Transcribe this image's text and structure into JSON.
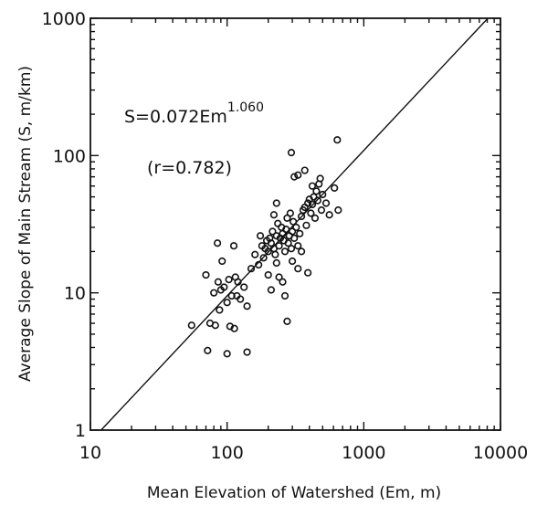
{
  "chart_data": {
    "type": "scatter",
    "xlabel": "Mean Elevation of Watershed (Em, m)",
    "ylabel": "Average Slope of Main Stream (S, m/km)",
    "x_scale": "log",
    "y_scale": "log",
    "xlim": [
      10,
      10000
    ],
    "ylim": [
      1,
      1000
    ],
    "x_ticks": [
      "10",
      "100",
      "1000",
      "10000"
    ],
    "y_ticks": [
      "1",
      "10",
      "100",
      "1000"
    ],
    "grid": false,
    "annotations": {
      "equation_main": "S=0.072Em",
      "equation_exponent": "1.060",
      "correlation": "(r=0.782)"
    },
    "fit_line": {
      "a": 0.072,
      "b": 1.06
    },
    "points": [
      [
        55,
        5.8
      ],
      [
        72,
        3.8
      ],
      [
        100,
        3.6
      ],
      [
        140,
        3.7
      ],
      [
        75,
        6
      ],
      [
        82,
        5.8
      ],
      [
        105,
        5.7
      ],
      [
        113,
        5.5
      ],
      [
        88,
        7.5
      ],
      [
        100,
        8.5
      ],
      [
        108,
        9.5
      ],
      [
        118,
        9.5
      ],
      [
        125,
        9
      ],
      [
        133,
        11
      ],
      [
        140,
        8
      ],
      [
        80,
        10
      ],
      [
        90,
        10.5
      ],
      [
        95,
        11
      ],
      [
        103,
        12.5
      ],
      [
        70,
        13.5
      ],
      [
        86,
        12
      ],
      [
        115,
        13
      ],
      [
        120,
        12
      ],
      [
        92,
        17
      ],
      [
        85,
        23
      ],
      [
        112,
        22
      ],
      [
        150,
        15
      ],
      [
        160,
        19
      ],
      [
        170,
        16
      ],
      [
        175,
        26
      ],
      [
        180,
        22
      ],
      [
        185,
        18
      ],
      [
        190,
        21
      ],
      [
        195,
        24
      ],
      [
        200,
        20
      ],
      [
        205,
        25
      ],
      [
        210,
        23
      ],
      [
        215,
        28
      ],
      [
        220,
        21
      ],
      [
        225,
        19
      ],
      [
        230,
        26
      ],
      [
        235,
        32
      ],
      [
        240,
        22
      ],
      [
        245,
        25
      ],
      [
        250,
        30
      ],
      [
        255,
        27
      ],
      [
        260,
        24
      ],
      [
        265,
        20
      ],
      [
        270,
        29
      ],
      [
        275,
        35
      ],
      [
        280,
        23
      ],
      [
        285,
        26
      ],
      [
        290,
        38
      ],
      [
        295,
        21
      ],
      [
        300,
        28
      ],
      [
        305,
        33
      ],
      [
        310,
        25
      ],
      [
        320,
        30
      ],
      [
        330,
        22
      ],
      [
        340,
        27
      ],
      [
        350,
        36
      ],
      [
        360,
        40
      ],
      [
        370,
        42
      ],
      [
        380,
        31
      ],
      [
        390,
        45
      ],
      [
        400,
        48
      ],
      [
        410,
        38
      ],
      [
        420,
        44
      ],
      [
        430,
        50
      ],
      [
        440,
        35
      ],
      [
        450,
        55
      ],
      [
        460,
        47
      ],
      [
        470,
        62
      ],
      [
        480,
        68
      ],
      [
        490,
        40
      ],
      [
        500,
        52
      ],
      [
        200,
        13.5
      ],
      [
        210,
        10.5
      ],
      [
        230,
        16.5
      ],
      [
        240,
        13
      ],
      [
        255,
        12
      ],
      [
        265,
        9.5
      ],
      [
        275,
        6.2
      ],
      [
        300,
        17
      ],
      [
        330,
        15
      ],
      [
        350,
        20
      ],
      [
        390,
        14
      ],
      [
        310,
        70
      ],
      [
        330,
        72
      ],
      [
        370,
        78
      ],
      [
        295,
        105
      ],
      [
        230,
        45
      ],
      [
        220,
        37
      ],
      [
        420,
        60
      ],
      [
        640,
        130
      ],
      [
        610,
        58
      ],
      [
        650,
        40
      ],
      [
        530,
        45
      ],
      [
        560,
        37
      ]
    ]
  }
}
